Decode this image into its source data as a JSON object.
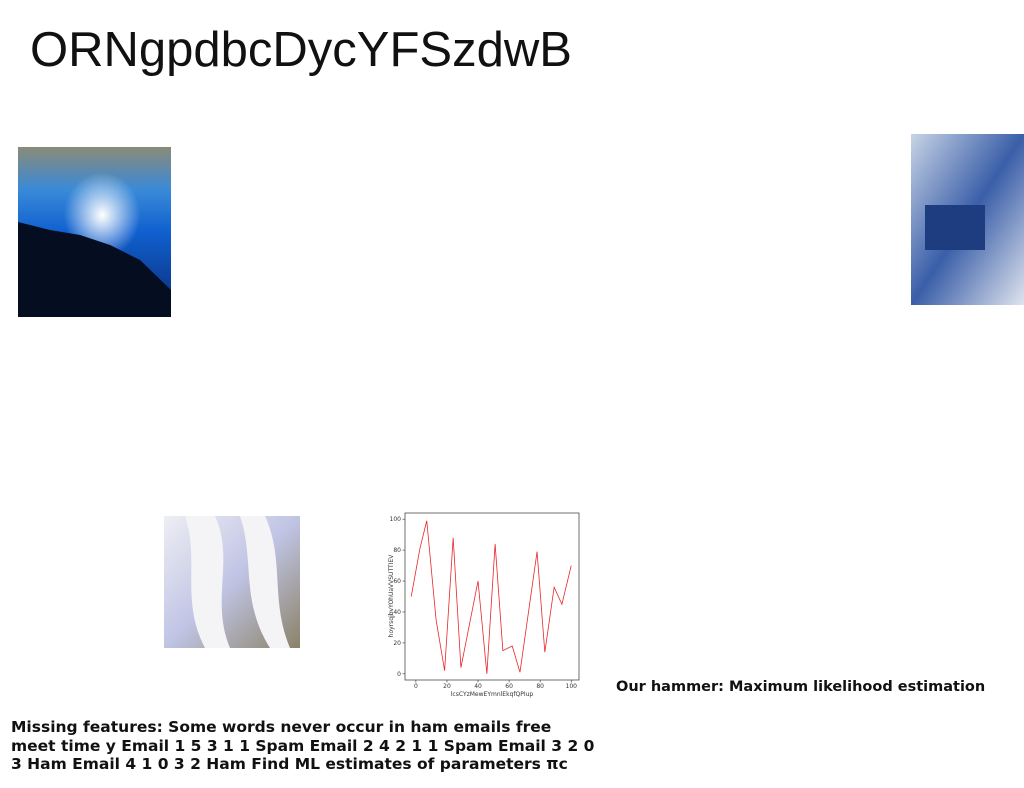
{
  "title": "ORNgpdbcDycYFSzdwB",
  "chart_data": {
    "type": "line",
    "x_label": "lcsCYzMewEYmnlEkqfQPIup",
    "y_label": "hoyrsqjbvYOhUaVVSUTTIEV",
    "x": [
      -3,
      2.6,
      7,
      13,
      18.5,
      24,
      29,
      40,
      45.7,
      51,
      56,
      62,
      67,
      78,
      83,
      89,
      94,
      100
    ],
    "series": [
      {
        "name": "series",
        "color": "#e8262a",
        "values": [
          50,
          81,
          99,
          35,
          2,
          88,
          4,
          60,
          0,
          84,
          15,
          18,
          1,
          79,
          14,
          56,
          45,
          70
        ]
      }
    ],
    "xlim": [
      -7,
      105
    ],
    "ylim": [
      -4,
      104
    ],
    "xticks": [
      0,
      20,
      40,
      60,
      80,
      100
    ],
    "yticks": [
      0,
      20,
      40,
      60,
      80,
      100
    ]
  },
  "caption": "Our hammer: Maximum likelihood estimation",
  "body_lines": [
    "Missing features: Some words never occur in ham emails free",
    "meet time y Email 1 5 3 1 1 Spam Email 2 4 2 1 1 Spam Email 3 2 0",
    "3 Ham Email 4 1 0 3 2 Ham Find ML estimates of parameters πc"
  ]
}
